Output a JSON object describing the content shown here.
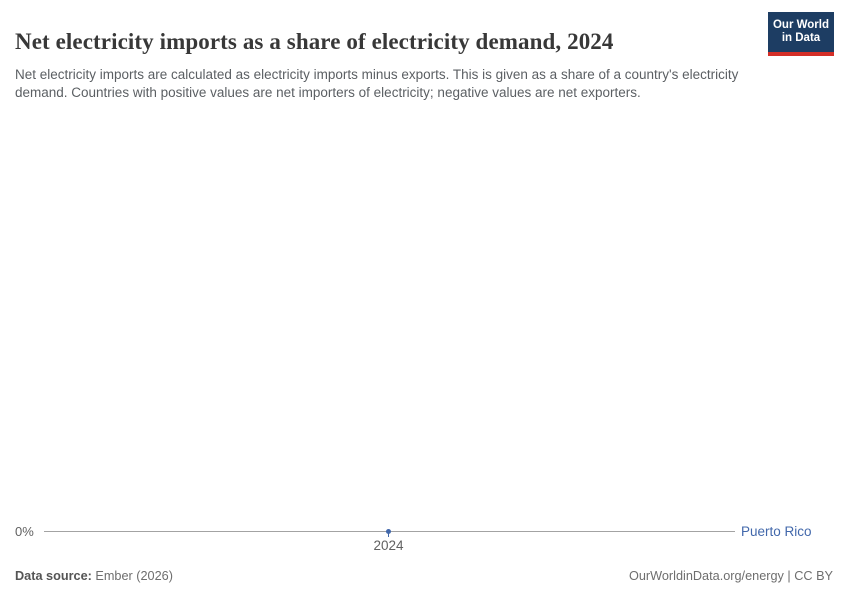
{
  "header": {
    "title": "Net electricity imports as a share of electricity demand, 2024",
    "subtitle": "Net electricity imports are calculated as electricity imports minus exports. This is given as a share of a country's electricity demand. Countries with positive values are net importers of electricity; negative values are net exporters.",
    "logo": {
      "line1": "Our World",
      "line2": "in Data"
    }
  },
  "chart_data": {
    "type": "line",
    "title": "Net electricity imports as a share of electricity demand, 2024",
    "x": [
      2024
    ],
    "series": [
      {
        "name": "Puerto Rico",
        "values": [
          0
        ]
      }
    ],
    "x_tick_labels": [
      "2024"
    ],
    "y_tick_labels": [
      "0%"
    ],
    "ylim": [
      0,
      0
    ],
    "grid": "single horizontal zero line",
    "legend_position": "right of line end",
    "series_color": "#4268ab",
    "gridline_color": "#a3a3a3"
  },
  "axis": {
    "y_zero_label": "0%",
    "x_tick_label": "2024",
    "entity_label": "Puerto Rico"
  },
  "footer": {
    "source_label": "Data source:",
    "source_value": " Ember (2026)",
    "credit": "OurWorldinData.org/energy | CC BY"
  },
  "colors": {
    "title": "#383838",
    "subtitle": "#5b5f63",
    "logo_navy": "#1d3d63",
    "logo_red": "#d42e27",
    "series_blue": "#4268ab",
    "axis_gray": "#616161",
    "gridline_gray": "#a3a3a3",
    "footer_gray": "#6e6e6e"
  }
}
